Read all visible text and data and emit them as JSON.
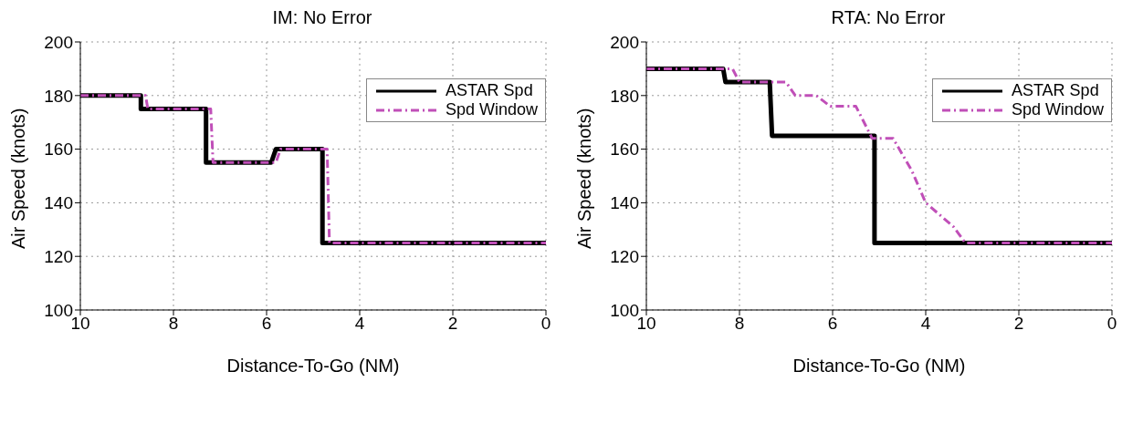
{
  "chart_data": [
    {
      "type": "line",
      "title": "IM: No Error",
      "xlabel": "Distance-To-Go (NM)",
      "ylabel": "Air Speed (knots)",
      "xlim": [
        10,
        0
      ],
      "xticks": [
        10,
        8,
        6,
        4,
        2,
        0
      ],
      "ylim": [
        100,
        200
      ],
      "yticks": [
        100,
        120,
        140,
        160,
        180,
        200
      ],
      "grid": true,
      "legend": "top right",
      "series": [
        {
          "name": "ASTAR Spd",
          "color": "#000000",
          "line_style": "solid",
          "x": [
            10,
            8.7,
            8.7,
            7.3,
            7.3,
            5.9,
            5.8,
            4.8,
            4.8,
            0
          ],
          "values": [
            180,
            180,
            175,
            175,
            155,
            155,
            160,
            160,
            125,
            125
          ]
        },
        {
          "name": "Spd Window",
          "color": "#c04fb8",
          "line_style": "dashdot",
          "x": [
            10,
            8.6,
            8.55,
            7.2,
            7.15,
            5.8,
            5.7,
            4.7,
            4.65,
            0
          ],
          "values": [
            180,
            180,
            175,
            175,
            155,
            155,
            160,
            160,
            125,
            125
          ]
        }
      ]
    },
    {
      "type": "line",
      "title": "RTA: No Error",
      "xlabel": "Distance-To-Go (NM)",
      "ylabel": "Air Speed (knots)",
      "xlim": [
        10,
        0
      ],
      "xticks": [
        10,
        8,
        6,
        4,
        2,
        0
      ],
      "ylim": [
        100,
        200
      ],
      "yticks": [
        100,
        120,
        140,
        160,
        180,
        200
      ],
      "grid": true,
      "legend": "top right",
      "series": [
        {
          "name": "ASTAR Spd",
          "color": "#000000",
          "line_style": "solid",
          "x": [
            10,
            8.35,
            8.3,
            7.35,
            7.3,
            5.1,
            5.1,
            0
          ],
          "values": [
            190,
            190,
            185,
            185,
            165,
            165,
            125,
            125
          ]
        },
        {
          "name": "Spd Window",
          "color": "#c04fb8",
          "line_style": "dashdot",
          "x": [
            10,
            8.15,
            8.0,
            7.0,
            6.8,
            6.35,
            6.05,
            5.5,
            5.15,
            4.7,
            4.3,
            4.0,
            3.4,
            3.15,
            0
          ],
          "values": [
            190,
            190,
            185,
            185,
            180,
            180,
            176,
            176,
            164,
            164,
            152,
            140,
            131,
            125,
            125
          ]
        }
      ]
    }
  ]
}
